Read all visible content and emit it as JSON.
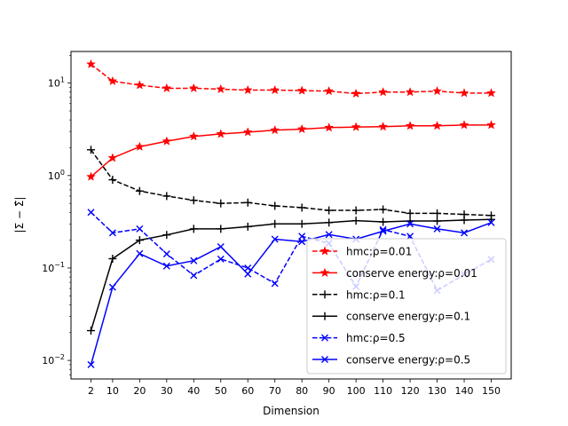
{
  "chart_data": {
    "type": "line",
    "title": "",
    "xlabel": "Dimension",
    "ylabel": "|Σ − Σ̂|",
    "yscale": "log",
    "ylim": [
      0.0063,
      22
    ],
    "grid": false,
    "legend_position": "lower-right",
    "x": [
      2,
      10,
      20,
      30,
      40,
      50,
      60,
      70,
      80,
      90,
      100,
      110,
      120,
      130,
      140,
      150
    ],
    "x_ticks": [
      "2",
      "10",
      "20",
      "30",
      "40",
      "50",
      "60",
      "70",
      "80",
      "90",
      "100",
      "110",
      "120",
      "130",
      "140",
      "150"
    ],
    "y_ticks": [
      {
        "value": 0.01,
        "base": "10",
        "exp": "−2"
      },
      {
        "value": 0.1,
        "base": "10",
        "exp": "−1"
      },
      {
        "value": 1,
        "base": "10",
        "exp": "0"
      },
      {
        "value": 10,
        "base": "10",
        "exp": "1"
      }
    ],
    "series": [
      {
        "name": "hmc:ρ=0.01",
        "color": "#ff0000",
        "dash": "dashed",
        "marker": "star",
        "values": [
          16.0,
          10.5,
          9.5,
          8.8,
          8.8,
          8.6,
          8.4,
          8.4,
          8.3,
          8.2,
          7.7,
          8.0,
          8.0,
          8.2,
          7.8,
          7.8
        ]
      },
      {
        "name": "conserve energy:ρ=0.01",
        "color": "#ff0000",
        "dash": "solid",
        "marker": "star",
        "values": [
          0.97,
          1.55,
          2.05,
          2.35,
          2.65,
          2.82,
          2.95,
          3.1,
          3.18,
          3.3,
          3.35,
          3.38,
          3.45,
          3.45,
          3.52,
          3.52
        ]
      },
      {
        "name": "hmc:ρ=0.1",
        "color": "#000000",
        "dash": "dashed",
        "marker": "plus",
        "values": [
          1.9,
          0.9,
          0.68,
          0.6,
          0.54,
          0.5,
          0.51,
          0.47,
          0.45,
          0.42,
          0.42,
          0.43,
          0.39,
          0.39,
          0.38,
          0.37
        ]
      },
      {
        "name": "conserve energy:ρ=0.1",
        "color": "#000000",
        "dash": "solid",
        "marker": "plus",
        "values": [
          0.021,
          0.126,
          0.2,
          0.228,
          0.265,
          0.265,
          0.28,
          0.3,
          0.3,
          0.31,
          0.325,
          0.315,
          0.322,
          0.322,
          0.33,
          0.335
        ]
      },
      {
        "name": "hmc:ρ=0.5",
        "color": "#0000ff",
        "dash": "dashed",
        "marker": "x",
        "values": [
          0.4,
          0.24,
          0.265,
          0.142,
          0.083,
          0.125,
          0.1,
          0.068,
          0.22,
          0.185,
          0.063,
          0.26,
          0.22,
          0.057,
          0.085,
          0.124
        ]
      },
      {
        "name": "conserve energy:ρ=0.5",
        "color": "#0000ff",
        "dash": "solid",
        "marker": "x",
        "values": [
          0.009,
          0.062,
          0.143,
          0.105,
          0.12,
          0.17,
          0.086,
          0.205,
          0.193,
          0.23,
          0.205,
          0.25,
          0.3,
          0.265,
          0.24,
          0.31
        ]
      }
    ]
  }
}
